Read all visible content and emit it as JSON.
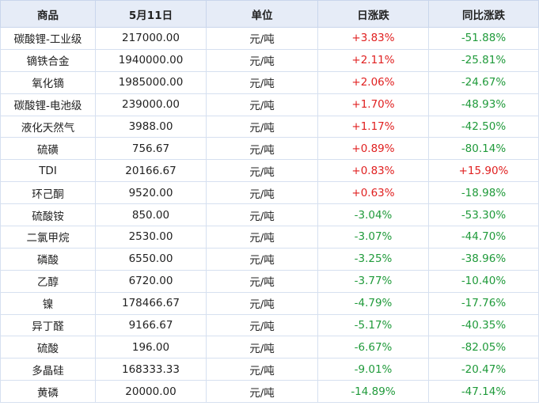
{
  "header": {
    "product": "商品",
    "date": "5月11日",
    "unit": "单位",
    "daily_change": "日涨跌",
    "yoy_change": "同比涨跌"
  },
  "colors": {
    "up": "#e02020",
    "down": "#1f9a3a",
    "header_bg": "#e6ecf7"
  },
  "rows": [
    {
      "product": "碳酸锂-工业级",
      "price": "217000.00",
      "unit": "元/吨",
      "daily": "+3.83%",
      "yoy": "-51.88%"
    },
    {
      "product": "镝铁合金",
      "price": "1940000.00",
      "unit": "元/吨",
      "daily": "+2.11%",
      "yoy": "-25.81%"
    },
    {
      "product": "氧化镝",
      "price": "1985000.00",
      "unit": "元/吨",
      "daily": "+2.06%",
      "yoy": "-24.67%"
    },
    {
      "product": "碳酸锂-电池级",
      "price": "239000.00",
      "unit": "元/吨",
      "daily": "+1.70%",
      "yoy": "-48.93%"
    },
    {
      "product": "液化天然气",
      "price": "3988.00",
      "unit": "元/吨",
      "daily": "+1.17%",
      "yoy": "-42.50%"
    },
    {
      "product": "硫磺",
      "price": "756.67",
      "unit": "元/吨",
      "daily": "+0.89%",
      "yoy": "-80.14%"
    },
    {
      "product": "TDI",
      "price": "20166.67",
      "unit": "元/吨",
      "daily": "+0.83%",
      "yoy": "+15.90%"
    },
    {
      "product": "环己酮",
      "price": "9520.00",
      "unit": "元/吨",
      "daily": "+0.63%",
      "yoy": "-18.98%"
    },
    {
      "product": "硫酸铵",
      "price": "850.00",
      "unit": "元/吨",
      "daily": "-3.04%",
      "yoy": "-53.30%"
    },
    {
      "product": "二氯甲烷",
      "price": "2530.00",
      "unit": "元/吨",
      "daily": "-3.07%",
      "yoy": "-44.70%"
    },
    {
      "product": "磷酸",
      "price": "6550.00",
      "unit": "元/吨",
      "daily": "-3.25%",
      "yoy": "-38.96%"
    },
    {
      "product": "乙醇",
      "price": "6720.00",
      "unit": "元/吨",
      "daily": "-3.77%",
      "yoy": "-10.40%"
    },
    {
      "product": "镍",
      "price": "178466.67",
      "unit": "元/吨",
      "daily": "-4.79%",
      "yoy": "-17.76%"
    },
    {
      "product": "异丁醛",
      "price": "9166.67",
      "unit": "元/吨",
      "daily": "-5.17%",
      "yoy": "-40.35%"
    },
    {
      "product": "硫酸",
      "price": "196.00",
      "unit": "元/吨",
      "daily": "-6.67%",
      "yoy": "-82.05%"
    },
    {
      "product": "多晶硅",
      "price": "168333.33",
      "unit": "元/吨",
      "daily": "-9.01%",
      "yoy": "-20.47%"
    },
    {
      "product": "黄磷",
      "price": "20000.00",
      "unit": "元/吨",
      "daily": "-14.89%",
      "yoy": "-47.14%"
    }
  ]
}
